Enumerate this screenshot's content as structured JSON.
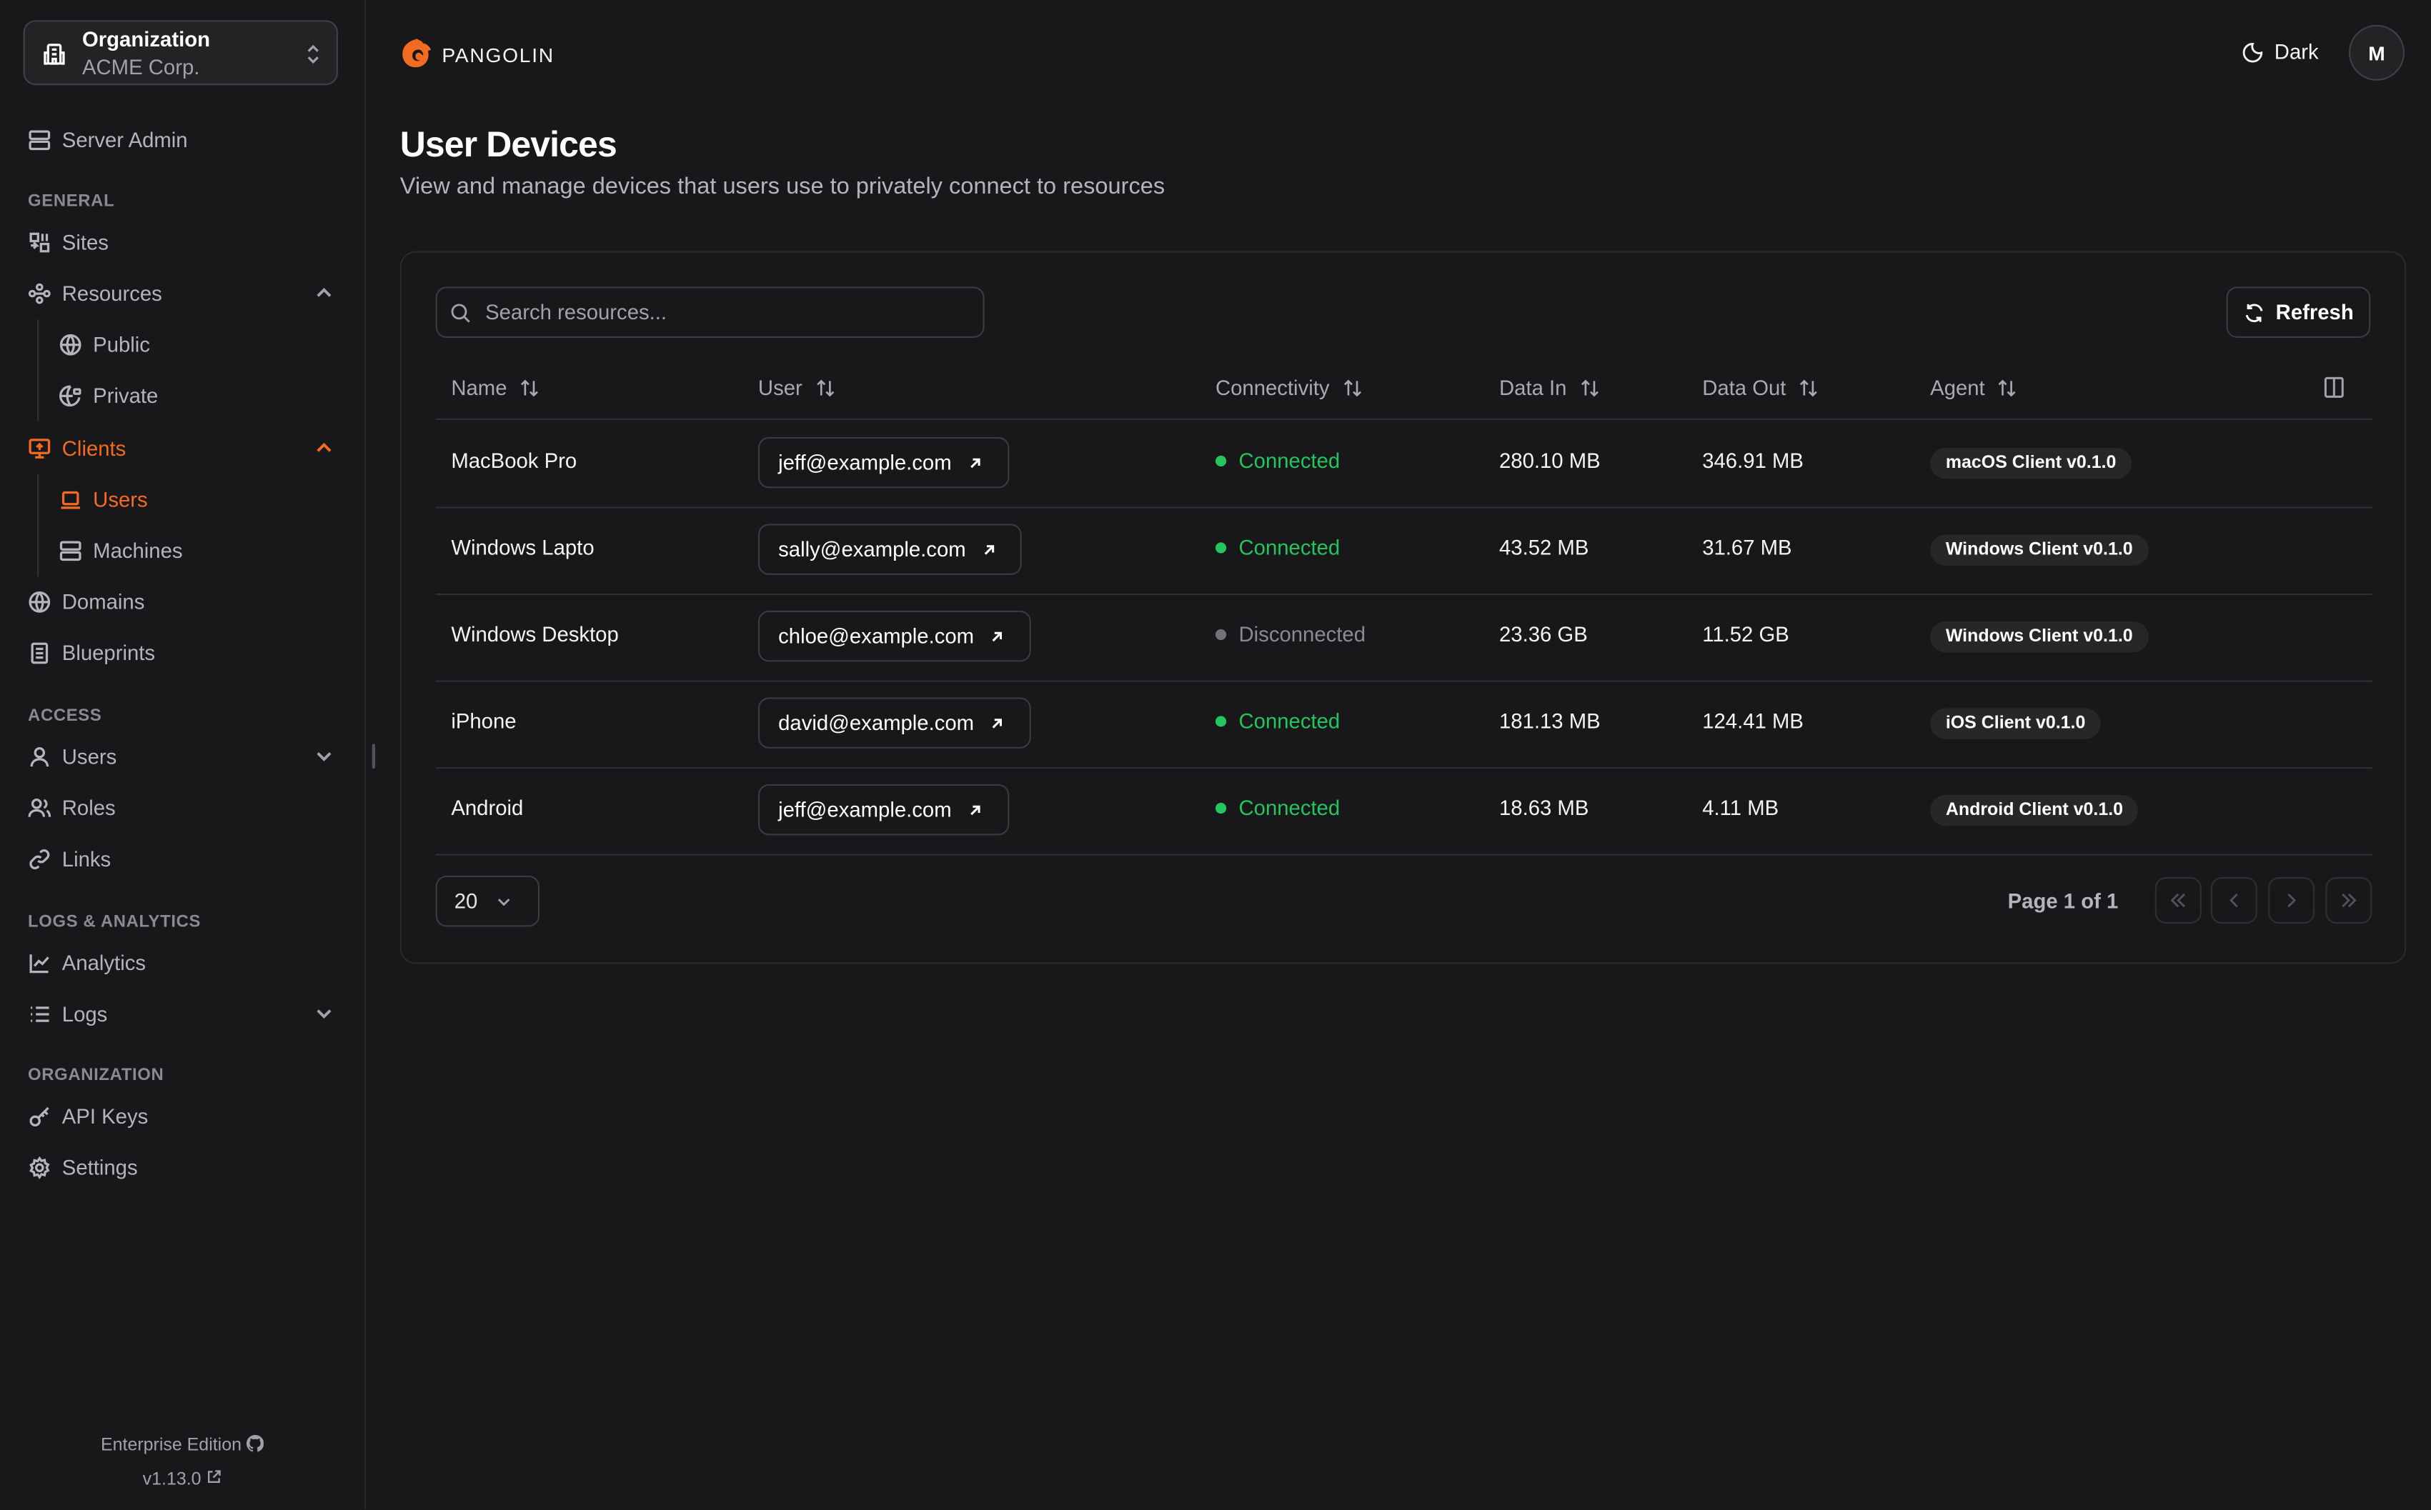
{
  "colors": {
    "accent": "#f36b21",
    "connected": "#22c55e",
    "disconnected": "#71717a",
    "background": "#18181b"
  },
  "sidebar": {
    "org": {
      "label": "Organization",
      "name": "ACME Corp.",
      "icon": "building-icon"
    },
    "server_admin": "Server Admin",
    "sections": {
      "general": "GENERAL",
      "access": "ACCESS",
      "logs": "LOGS & ANALYTICS",
      "organization": "ORGANIZATION"
    },
    "items": {
      "sites": "Sites",
      "resources": "Resources",
      "public": "Public",
      "private": "Private",
      "clients": "Clients",
      "users": "Users",
      "machines": "Machines",
      "domains": "Domains",
      "blueprints": "Blueprints",
      "access_users": "Users",
      "roles": "Roles",
      "links": "Links",
      "analytics": "Analytics",
      "logs": "Logs",
      "api_keys": "API Keys",
      "settings": "Settings"
    },
    "active": "Clients > Users",
    "edition": "Enterprise Edition",
    "version": "v1.13.0"
  },
  "header": {
    "brand": "PANGOLIN",
    "theme": "Dark",
    "avatar": "M"
  },
  "page": {
    "title": "User Devices",
    "subtitle": "View and manage devices that users use to privately connect to resources"
  },
  "table": {
    "search_placeholder": "Search resources...",
    "refresh": "Refresh",
    "columns": [
      "Name",
      "User",
      "Connectivity",
      "Data In",
      "Data Out",
      "Agent"
    ],
    "rows": [
      {
        "name": "MacBook Pro",
        "user": "jeff@example.com",
        "status": "Connected",
        "data_in": "280.10 MB",
        "data_out": "346.91 MB",
        "agent": "macOS Client v0.1.0"
      },
      {
        "name": "Windows Lapto",
        "user": "sally@example.com",
        "status": "Connected",
        "data_in": "43.52 MB",
        "data_out": "31.67 MB",
        "agent": "Windows Client v0.1.0"
      },
      {
        "name": "Windows Desktop",
        "user": "chloe@example.com",
        "status": "Disconnected",
        "data_in": "23.36 GB",
        "data_out": "11.52 GB",
        "agent": "Windows Client v0.1.0"
      },
      {
        "name": "iPhone",
        "user": "david@example.com",
        "status": "Connected",
        "data_in": "181.13 MB",
        "data_out": "124.41 MB",
        "agent": "iOS Client v0.1.0"
      },
      {
        "name": "Android",
        "user": "jeff@example.com",
        "status": "Connected",
        "data_in": "18.63 MB",
        "data_out": "4.11 MB",
        "agent": "Android Client v0.1.0"
      }
    ],
    "page_size": "20",
    "page_info": "Page 1 of 1"
  }
}
